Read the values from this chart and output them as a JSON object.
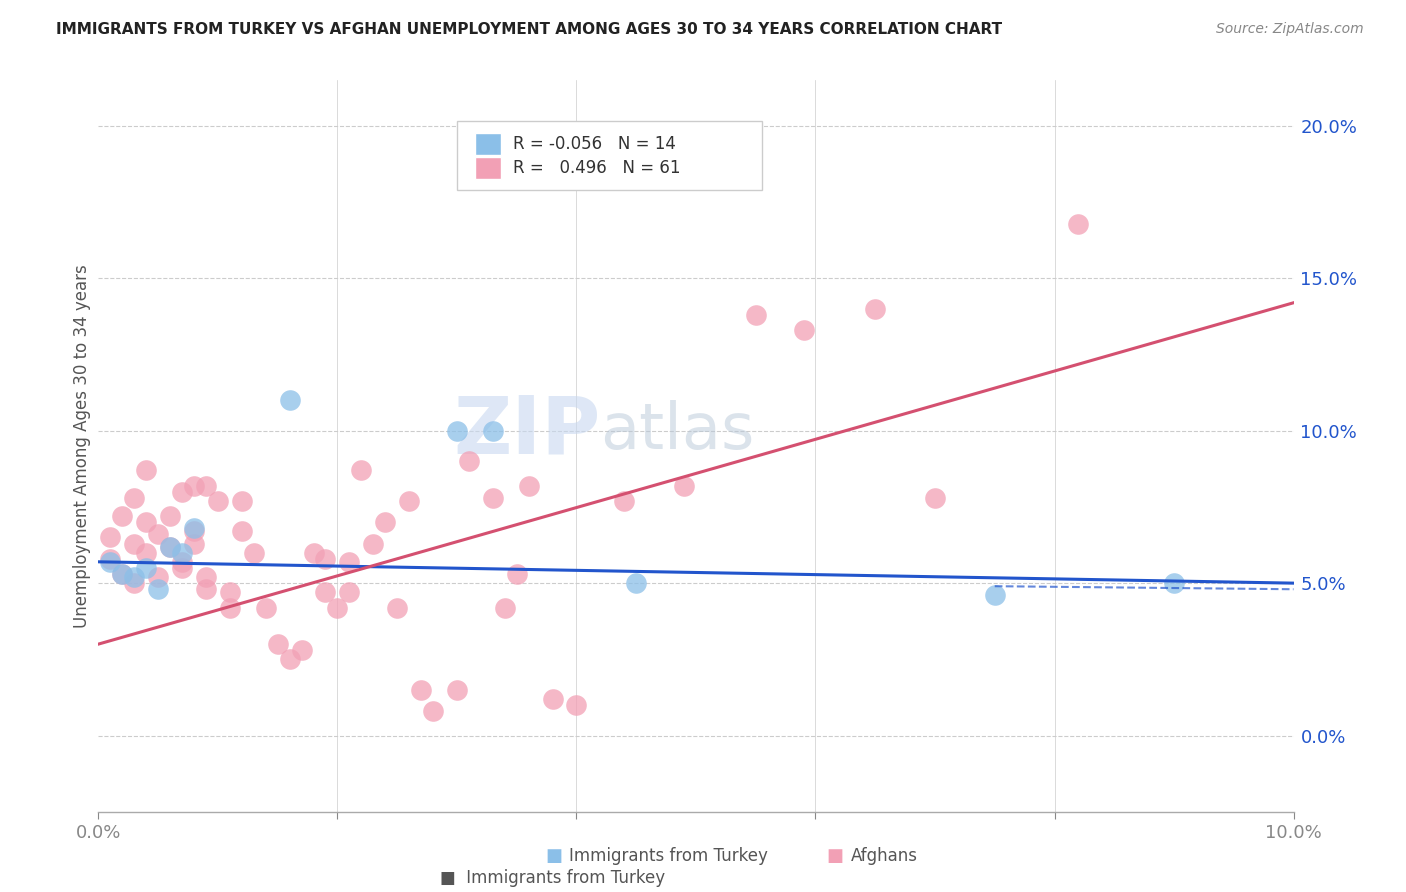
{
  "title": "IMMIGRANTS FROM TURKEY VS AFGHAN UNEMPLOYMENT AMONG AGES 30 TO 34 YEARS CORRELATION CHART",
  "source": "Source: ZipAtlas.com",
  "ylabel": "Unemployment Among Ages 30 to 34 years",
  "xlim": [
    0.0,
    0.1
  ],
  "ylim": [
    -0.025,
    0.215
  ],
  "yticks": [
    0.0,
    0.05,
    0.1,
    0.15,
    0.2
  ],
  "ytick_labels": [
    "0.0%",
    "5.0%",
    "10.0%",
    "15.0%",
    "20.0%"
  ],
  "xticks": [
    0.0,
    0.02,
    0.04,
    0.06,
    0.08,
    0.1
  ],
  "xtick_labels": [
    "0.0%",
    "",
    "",
    "",
    "",
    "10.0%"
  ],
  "legend_turkey_r": "-0.056",
  "legend_turkey_n": "14",
  "legend_afghan_r": "0.496",
  "legend_afghan_n": "61",
  "turkey_color": "#8BBFE8",
  "afghan_color": "#F2A0B5",
  "turkey_line_color": "#2255CC",
  "afghan_line_color": "#D45070",
  "watermark_zip": "ZIP",
  "watermark_atlas": "atlas",
  "turkey_points": [
    [
      0.001,
      0.057
    ],
    [
      0.002,
      0.053
    ],
    [
      0.003,
      0.052
    ],
    [
      0.004,
      0.055
    ],
    [
      0.005,
      0.048
    ],
    [
      0.006,
      0.062
    ],
    [
      0.007,
      0.06
    ],
    [
      0.008,
      0.068
    ],
    [
      0.016,
      0.11
    ],
    [
      0.03,
      0.1
    ],
    [
      0.033,
      0.1
    ],
    [
      0.045,
      0.05
    ],
    [
      0.075,
      0.046
    ],
    [
      0.09,
      0.05
    ]
  ],
  "afghan_points": [
    [
      0.001,
      0.058
    ],
    [
      0.001,
      0.065
    ],
    [
      0.002,
      0.053
    ],
    [
      0.002,
      0.072
    ],
    [
      0.003,
      0.05
    ],
    [
      0.003,
      0.078
    ],
    [
      0.003,
      0.063
    ],
    [
      0.004,
      0.07
    ],
    [
      0.004,
      0.06
    ],
    [
      0.004,
      0.087
    ],
    [
      0.005,
      0.066
    ],
    [
      0.005,
      0.052
    ],
    [
      0.006,
      0.072
    ],
    [
      0.006,
      0.062
    ],
    [
      0.007,
      0.055
    ],
    [
      0.007,
      0.08
    ],
    [
      0.007,
      0.057
    ],
    [
      0.008,
      0.082
    ],
    [
      0.008,
      0.067
    ],
    [
      0.008,
      0.063
    ],
    [
      0.009,
      0.048
    ],
    [
      0.009,
      0.082
    ],
    [
      0.009,
      0.052
    ],
    [
      0.01,
      0.077
    ],
    [
      0.011,
      0.042
    ],
    [
      0.011,
      0.047
    ],
    [
      0.012,
      0.067
    ],
    [
      0.012,
      0.077
    ],
    [
      0.013,
      0.06
    ],
    [
      0.014,
      0.042
    ],
    [
      0.015,
      0.03
    ],
    [
      0.016,
      0.025
    ],
    [
      0.017,
      0.028
    ],
    [
      0.018,
      0.06
    ],
    [
      0.019,
      0.047
    ],
    [
      0.019,
      0.058
    ],
    [
      0.02,
      0.042
    ],
    [
      0.021,
      0.057
    ],
    [
      0.021,
      0.047
    ],
    [
      0.022,
      0.087
    ],
    [
      0.023,
      0.063
    ],
    [
      0.024,
      0.07
    ],
    [
      0.025,
      0.042
    ],
    [
      0.026,
      0.077
    ],
    [
      0.027,
      0.015
    ],
    [
      0.028,
      0.008
    ],
    [
      0.03,
      0.015
    ],
    [
      0.031,
      0.09
    ],
    [
      0.033,
      0.078
    ],
    [
      0.034,
      0.042
    ],
    [
      0.035,
      0.053
    ],
    [
      0.036,
      0.082
    ],
    [
      0.038,
      0.012
    ],
    [
      0.04,
      0.01
    ],
    [
      0.044,
      0.077
    ],
    [
      0.049,
      0.082
    ],
    [
      0.055,
      0.138
    ],
    [
      0.059,
      0.133
    ],
    [
      0.065,
      0.14
    ],
    [
      0.07,
      0.078
    ],
    [
      0.082,
      0.168
    ]
  ],
  "turkey_trend": [
    0.0,
    0.1,
    0.057,
    0.05
  ],
  "afghan_trend": [
    0.0,
    0.1,
    0.03,
    0.142
  ]
}
